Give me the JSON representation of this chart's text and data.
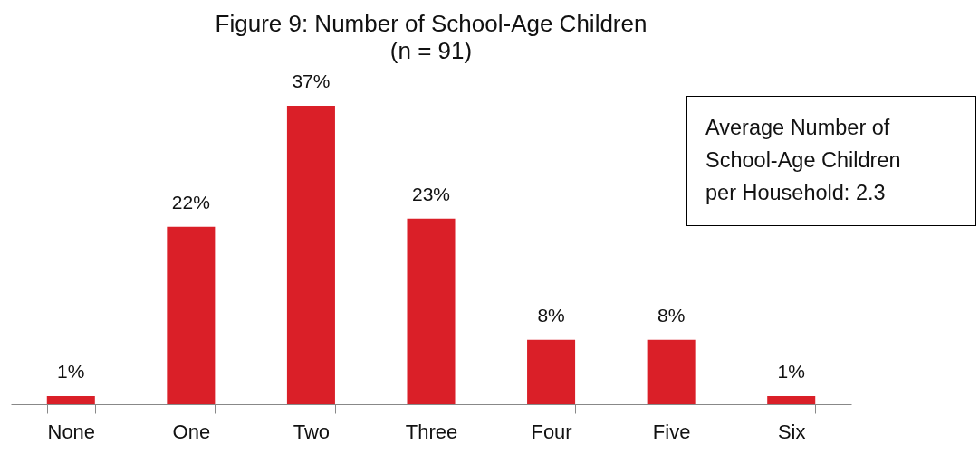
{
  "chart_data": {
    "type": "bar",
    "title": "Figure 9: Number of School-Age Children",
    "subtitle": "(n = 91)",
    "categories": [
      "None",
      "One",
      "Two",
      "Three",
      "Four",
      "Five",
      "Six"
    ],
    "values": [
      1,
      22,
      37,
      23,
      8,
      8,
      1
    ],
    "value_labels": [
      "1%",
      "22%",
      "37%",
      "23%",
      "8%",
      "8%",
      "1%"
    ],
    "color": "#da1f28",
    "annotations": [
      "Average Number of School-Age Children per Household: 2.3"
    ],
    "grid": false
  }
}
